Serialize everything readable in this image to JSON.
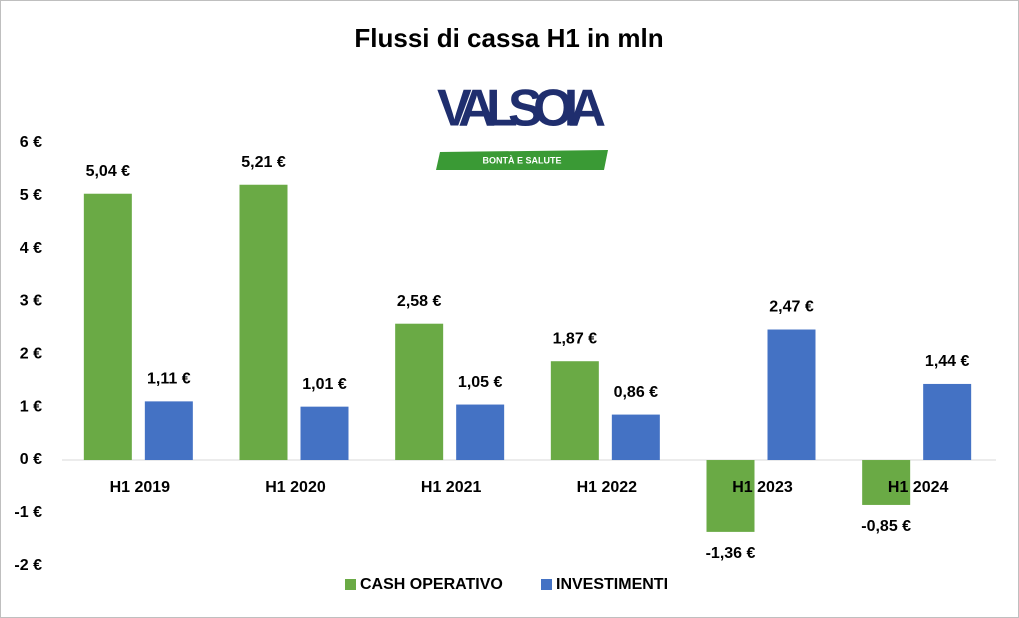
{
  "logo": {
    "name": "VALSOIA",
    "tagline": "BONTÀ E SALUTE"
  },
  "chart_data": {
    "type": "bar",
    "title": "Flussi di cassa H1 in mln",
    "categories": [
      "H1 2019",
      "H1 2020",
      "H1 2021",
      "H1 2022",
      "H1 2023",
      "H1 2024"
    ],
    "series": [
      {
        "name": "CASH OPERATIVO",
        "color": "#6aaa45",
        "values": [
          5.04,
          5.21,
          2.58,
          1.87,
          -1.36,
          -0.85
        ],
        "value_labels": [
          "5,04 €",
          "5,21 €",
          "2,58 €",
          "1,87 €",
          "-1,36 €",
          "-0,85 €"
        ]
      },
      {
        "name": "INVESTIMENTI",
        "color": "#4472c4",
        "values": [
          1.11,
          1.01,
          1.05,
          0.86,
          2.47,
          1.44
        ],
        "value_labels": [
          "1,11 €",
          "1,01 €",
          "1,05 €",
          "0,86 €",
          "2,47 €",
          "1,44 €"
        ]
      }
    ],
    "ylim": [
      -2,
      6
    ],
    "yticks": [
      {
        "value": -2,
        "label": "-2 €"
      },
      {
        "value": -1,
        "label": "-1 €"
      },
      {
        "value": 0,
        "label": "0 €"
      },
      {
        "value": 1,
        "label": "1 €"
      },
      {
        "value": 2,
        "label": "2 €"
      },
      {
        "value": 3,
        "label": "3 €"
      },
      {
        "value": 4,
        "label": "4 €"
      },
      {
        "value": 5,
        "label": "5 €"
      },
      {
        "value": 6,
        "label": "6 €"
      }
    ],
    "grid": false,
    "legend": "bottom"
  }
}
